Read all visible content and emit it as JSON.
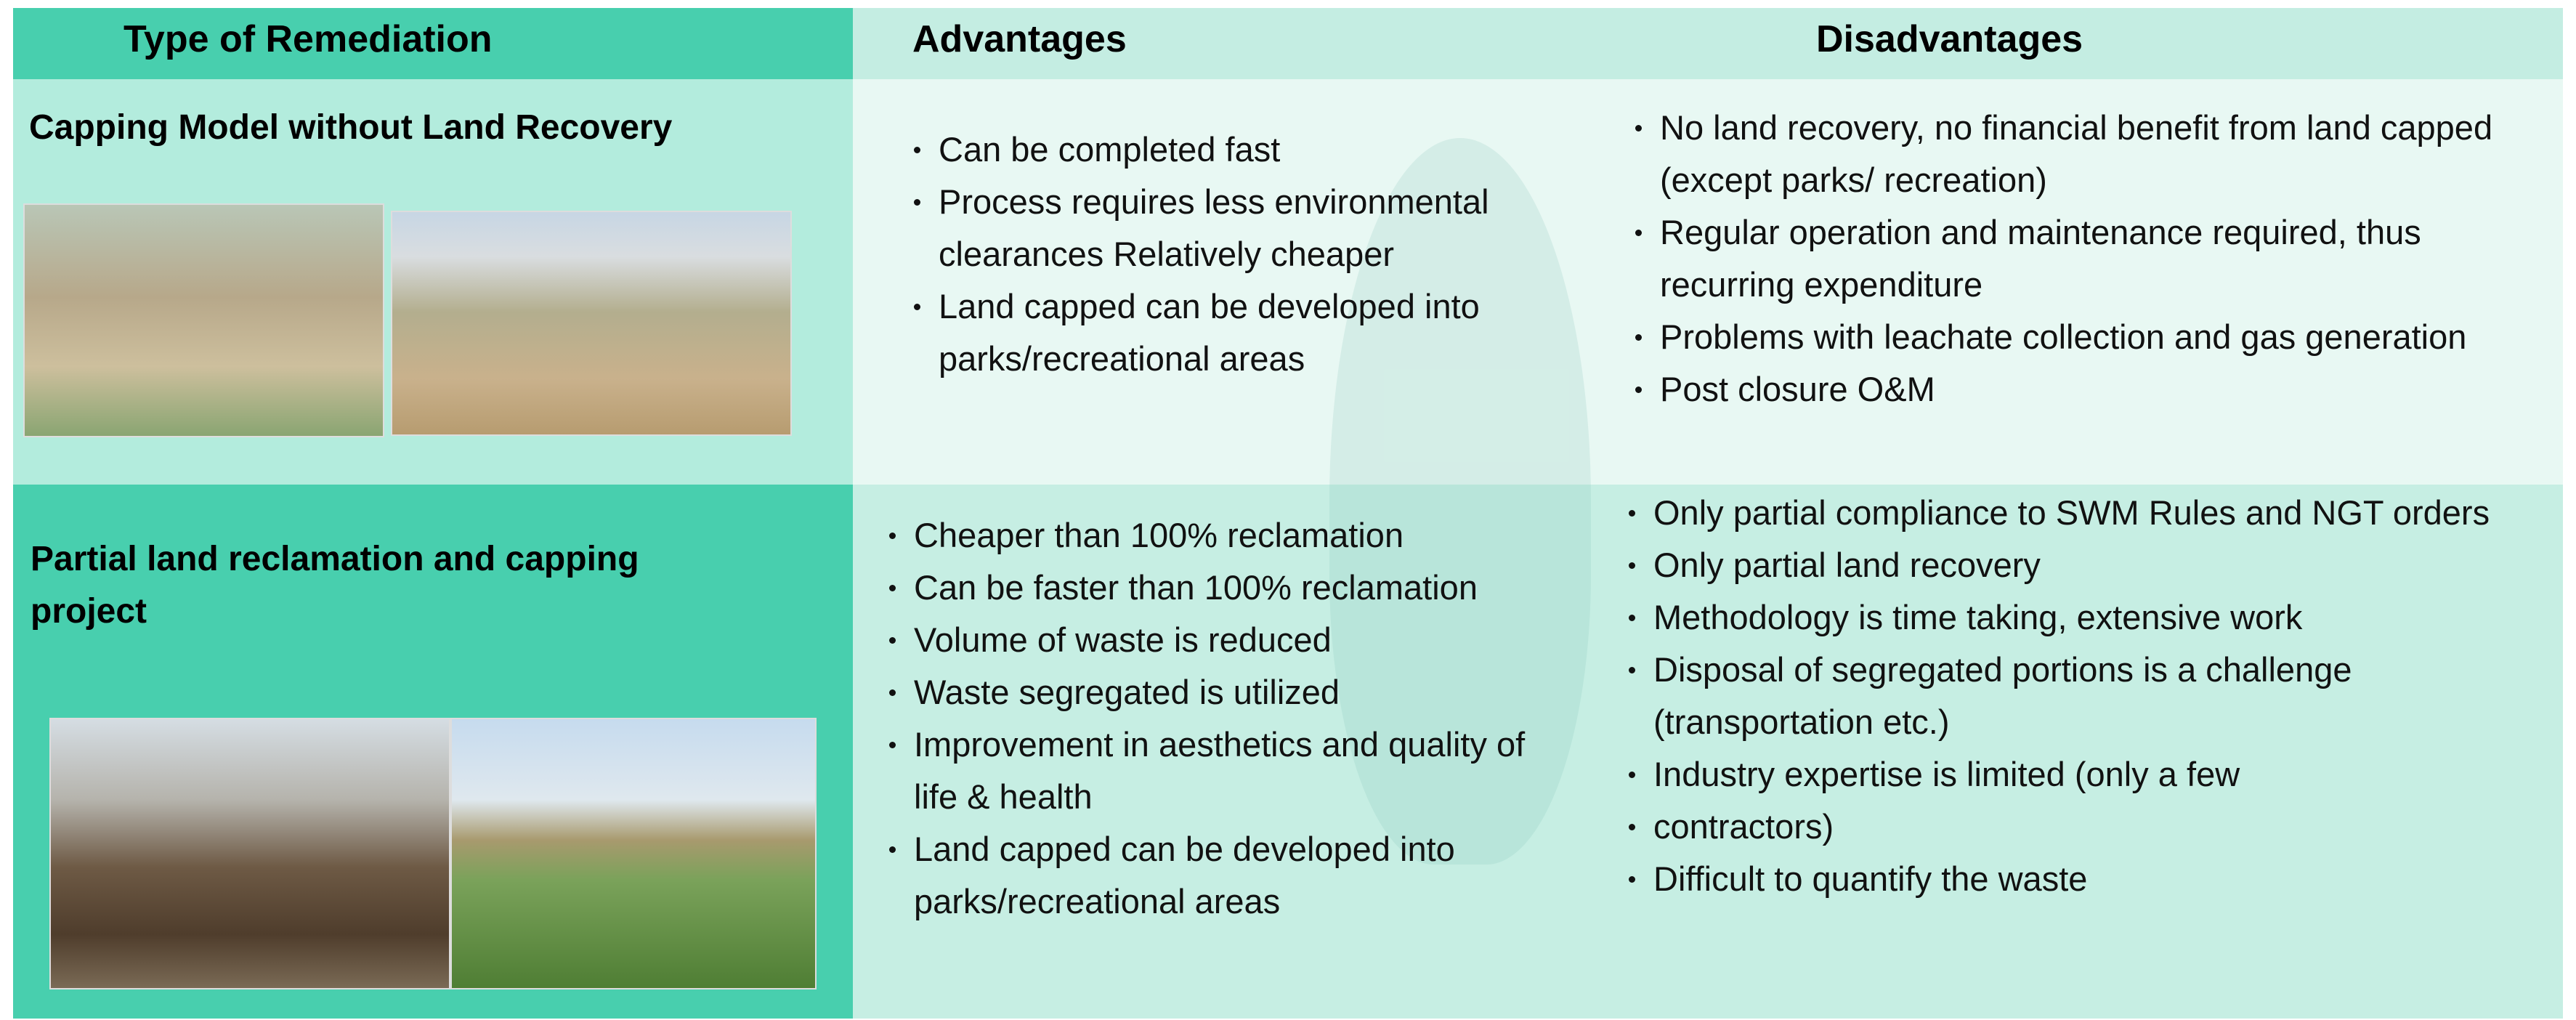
{
  "header": [
    "Type of Remediation",
    "Advantages",
    "Disadvantages"
  ],
  "rows": [
    {
      "type": "Capping Model without Land Recovery",
      "advantages": [
        "Can be completed fast",
        "Process requires less environmental clearances Relatively cheaper",
        "Land capped can be developed into parks/recreational areas"
      ],
      "disadvantages": [
        "No land recovery, no financial benefit from land capped (except parks/ recreation)",
        "Regular operation and maintenance required, thus recurring expenditure",
        "Problems with leachate collection and gas generation",
        "Post closure O&M"
      ]
    },
    {
      "type": "Partial land reclamation and capping project",
      "advantages": [
        "Cheaper than 100% reclamation",
        "Can be faster than 100% reclamation",
        "Volume of waste is reduced",
        "Waste segregated is utilized",
        "Improvement in aesthetics and quality of life & health",
        "Land capped can be developed into parks/recreational areas"
      ],
      "disadvantages": [
        "Only partial compliance to SWM Rules and NGT orders",
        "Only partial land recovery",
        "Methodology is time taking, extensive work",
        "Disposal of segregated portions is a challenge (transportation etc.)",
        "Industry expertise is limited (only a few",
        "contractors)",
        "Difficult to quantify the waste"
      ]
    }
  ]
}
